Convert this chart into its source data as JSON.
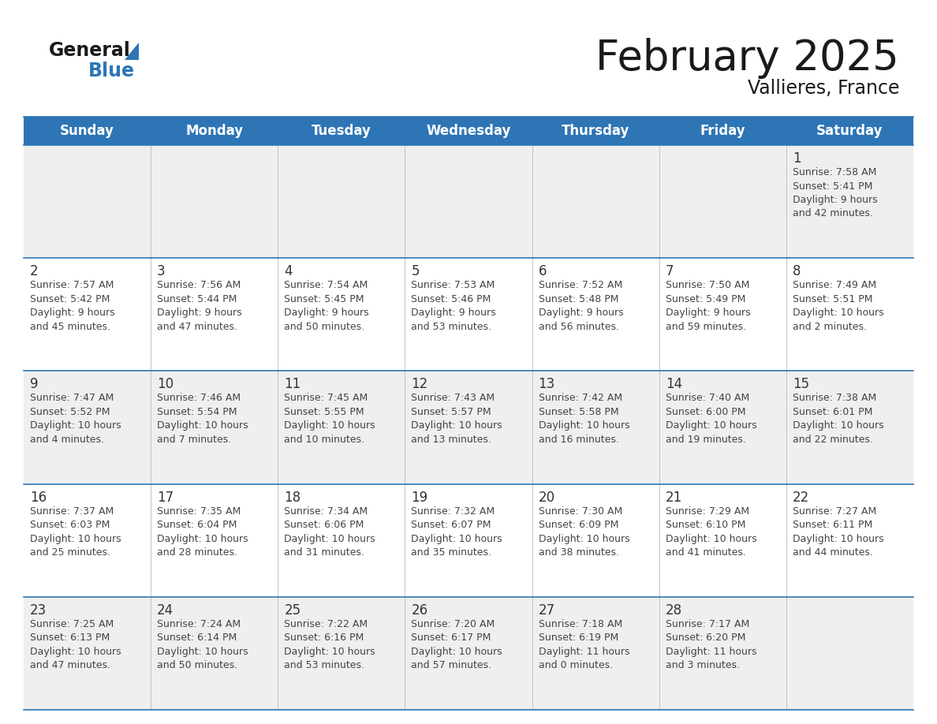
{
  "title": "February 2025",
  "subtitle": "Vallieres, France",
  "header_bg": "#2E75B6",
  "header_text_color": "#FFFFFF",
  "cell_bg_light": "#EFEFEF",
  "cell_bg_white": "#FFFFFF",
  "day_headers": [
    "Sunday",
    "Monday",
    "Tuesday",
    "Wednesday",
    "Thursday",
    "Friday",
    "Saturday"
  ],
  "header_line_color": "#2E75B6",
  "day_number_color": "#333333",
  "cell_text_color": "#444444",
  "calendar_data": [
    [
      null,
      null,
      null,
      null,
      null,
      null,
      {
        "day": 1,
        "sunrise": "7:58 AM",
        "sunset": "5:41 PM",
        "daylight": "9 hours\nand 42 minutes."
      }
    ],
    [
      {
        "day": 2,
        "sunrise": "7:57 AM",
        "sunset": "5:42 PM",
        "daylight": "9 hours\nand 45 minutes."
      },
      {
        "day": 3,
        "sunrise": "7:56 AM",
        "sunset": "5:44 PM",
        "daylight": "9 hours\nand 47 minutes."
      },
      {
        "day": 4,
        "sunrise": "7:54 AM",
        "sunset": "5:45 PM",
        "daylight": "9 hours\nand 50 minutes."
      },
      {
        "day": 5,
        "sunrise": "7:53 AM",
        "sunset": "5:46 PM",
        "daylight": "9 hours\nand 53 minutes."
      },
      {
        "day": 6,
        "sunrise": "7:52 AM",
        "sunset": "5:48 PM",
        "daylight": "9 hours\nand 56 minutes."
      },
      {
        "day": 7,
        "sunrise": "7:50 AM",
        "sunset": "5:49 PM",
        "daylight": "9 hours\nand 59 minutes."
      },
      {
        "day": 8,
        "sunrise": "7:49 AM",
        "sunset": "5:51 PM",
        "daylight": "10 hours\nand 2 minutes."
      }
    ],
    [
      {
        "day": 9,
        "sunrise": "7:47 AM",
        "sunset": "5:52 PM",
        "daylight": "10 hours\nand 4 minutes."
      },
      {
        "day": 10,
        "sunrise": "7:46 AM",
        "sunset": "5:54 PM",
        "daylight": "10 hours\nand 7 minutes."
      },
      {
        "day": 11,
        "sunrise": "7:45 AM",
        "sunset": "5:55 PM",
        "daylight": "10 hours\nand 10 minutes."
      },
      {
        "day": 12,
        "sunrise": "7:43 AM",
        "sunset": "5:57 PM",
        "daylight": "10 hours\nand 13 minutes."
      },
      {
        "day": 13,
        "sunrise": "7:42 AM",
        "sunset": "5:58 PM",
        "daylight": "10 hours\nand 16 minutes."
      },
      {
        "day": 14,
        "sunrise": "7:40 AM",
        "sunset": "6:00 PM",
        "daylight": "10 hours\nand 19 minutes."
      },
      {
        "day": 15,
        "sunrise": "7:38 AM",
        "sunset": "6:01 PM",
        "daylight": "10 hours\nand 22 minutes."
      }
    ],
    [
      {
        "day": 16,
        "sunrise": "7:37 AM",
        "sunset": "6:03 PM",
        "daylight": "10 hours\nand 25 minutes."
      },
      {
        "day": 17,
        "sunrise": "7:35 AM",
        "sunset": "6:04 PM",
        "daylight": "10 hours\nand 28 minutes."
      },
      {
        "day": 18,
        "sunrise": "7:34 AM",
        "sunset": "6:06 PM",
        "daylight": "10 hours\nand 31 minutes."
      },
      {
        "day": 19,
        "sunrise": "7:32 AM",
        "sunset": "6:07 PM",
        "daylight": "10 hours\nand 35 minutes."
      },
      {
        "day": 20,
        "sunrise": "7:30 AM",
        "sunset": "6:09 PM",
        "daylight": "10 hours\nand 38 minutes."
      },
      {
        "day": 21,
        "sunrise": "7:29 AM",
        "sunset": "6:10 PM",
        "daylight": "10 hours\nand 41 minutes."
      },
      {
        "day": 22,
        "sunrise": "7:27 AM",
        "sunset": "6:11 PM",
        "daylight": "10 hours\nand 44 minutes."
      }
    ],
    [
      {
        "day": 23,
        "sunrise": "7:25 AM",
        "sunset": "6:13 PM",
        "daylight": "10 hours\nand 47 minutes."
      },
      {
        "day": 24,
        "sunrise": "7:24 AM",
        "sunset": "6:14 PM",
        "daylight": "10 hours\nand 50 minutes."
      },
      {
        "day": 25,
        "sunrise": "7:22 AM",
        "sunset": "6:16 PM",
        "daylight": "10 hours\nand 53 minutes."
      },
      {
        "day": 26,
        "sunrise": "7:20 AM",
        "sunset": "6:17 PM",
        "daylight": "10 hours\nand 57 minutes."
      },
      {
        "day": 27,
        "sunrise": "7:18 AM",
        "sunset": "6:19 PM",
        "daylight": "11 hours\nand 0 minutes."
      },
      {
        "day": 28,
        "sunrise": "7:17 AM",
        "sunset": "6:20 PM",
        "daylight": "11 hours\nand 3 minutes."
      },
      null
    ]
  ]
}
